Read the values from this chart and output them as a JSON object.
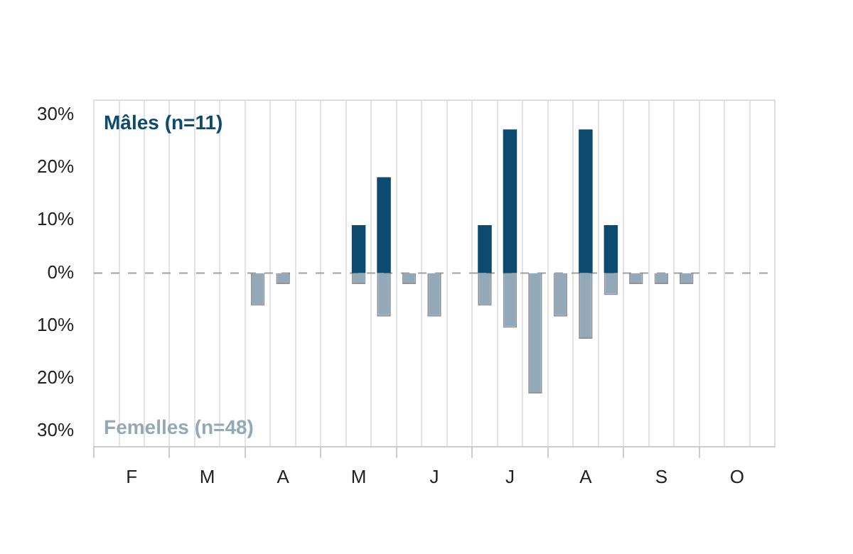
{
  "chart_data": {
    "type": "bar",
    "stacked": true,
    "grid": "x",
    "legend": false,
    "categories": [
      null,
      "F",
      null,
      null,
      "M",
      null,
      null,
      "A",
      null,
      null,
      "M",
      null,
      null,
      "J",
      null,
      null,
      "J",
      null,
      null,
      "A",
      null,
      null,
      "S",
      null,
      null,
      "O",
      null
    ],
    "series": [
      {
        "name": "Mâles (n=11)",
        "color": "#0d4a70",
        "values": [
          null,
          null,
          null,
          null,
          null,
          null,
          null,
          null,
          null,
          null,
          9.1,
          18.2,
          null,
          null,
          null,
          9.1,
          27.3,
          null,
          null,
          27.3,
          9.1,
          null,
          null,
          null,
          null,
          null,
          null
        ]
      },
      {
        "name": "Femelles (n=48)",
        "color": "#94a9b8",
        "values": [
          null,
          null,
          null,
          null,
          null,
          null,
          -6.2,
          -2.1,
          null,
          null,
          -2.1,
          -8.3,
          -2.1,
          -8.3,
          null,
          -6.2,
          -10.4,
          -22.9,
          -8.3,
          -12.5,
          -4.2,
          -2.1,
          -2.1,
          -2.1,
          null,
          null,
          null
        ]
      }
    ],
    "ylim": [
      -33,
      33
    ],
    "yticks": [
      {
        "value": -30,
        "label": "30%"
      },
      {
        "value": -20,
        "label": "20%"
      },
      {
        "value": -10,
        "label": "10%"
      },
      {
        "value": 0,
        "label": "0%"
      },
      {
        "value": 10,
        "label": "10%"
      },
      {
        "value": 20,
        "label": "20%"
      },
      {
        "value": 30,
        "label": "30%"
      }
    ],
    "ref_lines": [
      {
        "axis": "y",
        "value": 0,
        "color": "#a0a0a0",
        "line_style": "dashed"
      }
    ]
  }
}
